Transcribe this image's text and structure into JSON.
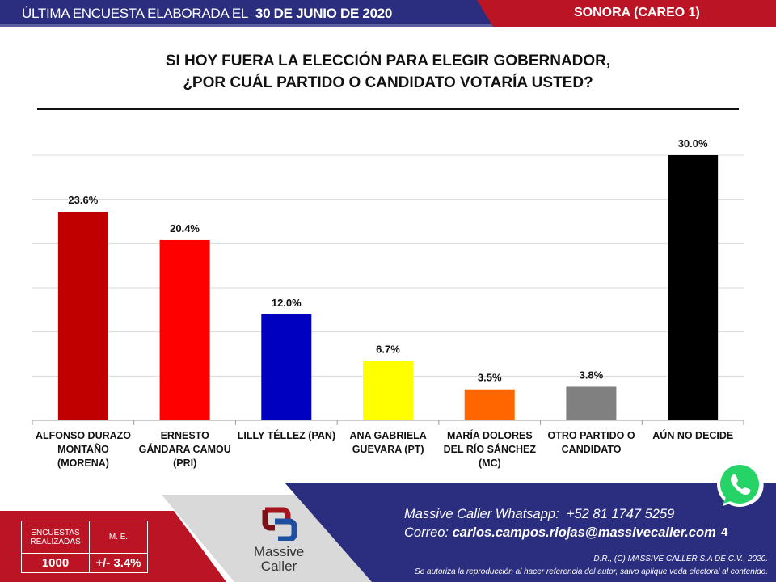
{
  "header": {
    "prefix": "ÚLTIMA ENCUESTA ELABORADA EL",
    "date": "30 DE JUNIO DE 2020",
    "region": "SONORA (CAREO 1)"
  },
  "colors": {
    "header_blue": "#2b2e7f",
    "header_red": "#bb1424"
  },
  "chart_data": {
    "type": "bar",
    "title": "SI HOY FUERA LA ELECCIÓN PARA ELEGIR GOBERNADOR, ¿POR CUÁL PARTIDO O CANDIDATO VOTARÍA USTED?",
    "title_line1": "SI HOY FUERA LA ELECCIÓN PARA ELEGIR GOBERNADOR,",
    "title_line2": "¿POR CUÁL PARTIDO O CANDIDATO VOTARÍA USTED?",
    "categories": [
      "ALFONSO DURAZO MONTAÑO (MORENA)",
      "ERNESTO GÁNDARA CAMOU (PRI)",
      "LILLY TÉLLEZ (PAN)",
      "ANA GABRIELA GUEVARA (PT)",
      "MARÍA DOLORES DEL RÍO SÁNCHEZ (MC)",
      "OTRO PARTIDO O CANDIDATO",
      "AÚN NO DECIDE"
    ],
    "values": [
      23.6,
      20.4,
      12.0,
      6.7,
      3.5,
      3.8,
      30.0
    ],
    "data_labels": [
      "23.6%",
      "20.4%",
      "12.0%",
      "6.7%",
      "3.5%",
      "3.8%",
      "30.0%"
    ],
    "colors": [
      "#c00000",
      "#ff0000",
      "#0000c0",
      "#ffff00",
      "#ff6600",
      "#808080",
      "#000000"
    ],
    "ylim": [
      0,
      30
    ],
    "grid": true,
    "grid_step": 5,
    "legend": "none",
    "xlabel": "",
    "ylabel": ""
  },
  "footer": {
    "stats_headers": [
      "ENCUESTAS REALIZADAS",
      "M. E."
    ],
    "stats_values": [
      "1000",
      "+/- 3.4%"
    ],
    "logo_text": "Massive Caller",
    "whatsapp_label": "Massive Caller Whatsapp:",
    "whatsapp_number": "+52 81 1747 5259",
    "email_label": "Correo:",
    "email": "carlos.campos.riojas@massivecaller.com",
    "page_number": "4",
    "copyright": "D.R., (C) MASSIVE CALLER S.A DE C.V., 2020.",
    "notice": "Se autoriza la reproducción al hacer referencia del autor, salvo aplique veda electoral al contenido."
  }
}
